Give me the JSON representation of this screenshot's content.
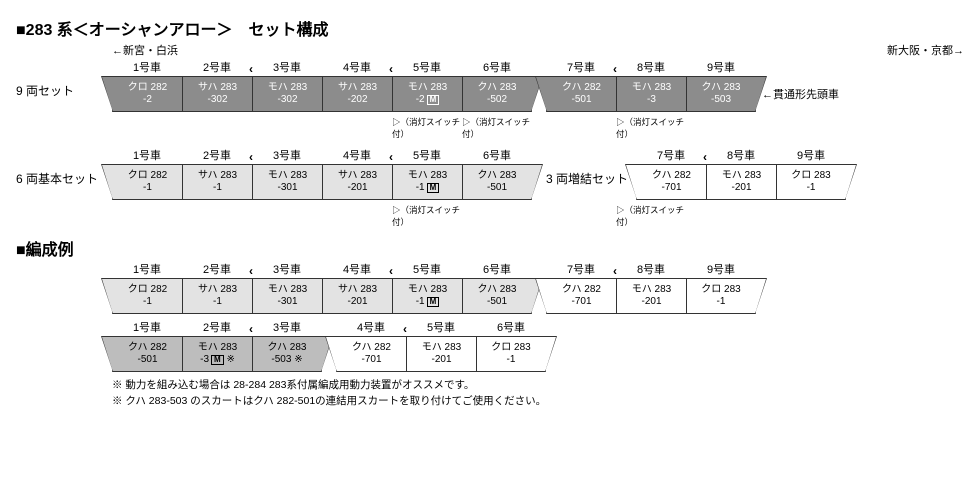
{
  "title1": "■283 系＜オーシャンアロー＞　セット構成",
  "title2": "■編成例",
  "dir_left": "←新宮・白浜",
  "dir_right": "新大阪・京都→",
  "arrow_note": "←貫通形先頭車",
  "labels": {
    "set9": "9 両セット",
    "set6": "6 両基本セット",
    "set3": "3 両増結セット"
  },
  "car_nums": [
    "1号車",
    "2号車",
    "3号車",
    "4号車",
    "5号車",
    "6号車",
    "7号車",
    "8号車",
    "9号車"
  ],
  "chevron_at": [
    3,
    5,
    8
  ],
  "switch_note": "（消灯スイッチ付）",
  "rows": {
    "set9": [
      {
        "t": "dark",
        "l1": "クロ 282",
        "l2": "-2",
        "noseL": true
      },
      {
        "t": "dark",
        "l1": "サハ 283",
        "l2": "-302"
      },
      {
        "t": "dark",
        "l1": "モハ 283",
        "l2": "-302"
      },
      {
        "t": "dark",
        "l1": "サハ 283",
        "l2": "-202"
      },
      {
        "t": "dark",
        "l1": "モハ 283",
        "l2": "-2",
        "m": true
      },
      {
        "t": "dark",
        "l1": "クハ 283",
        "l2": "-502",
        "noseR": true
      },
      {
        "t": "dark",
        "l1": "クハ 282",
        "l2": "-501",
        "noseL": true,
        "gapBefore": true
      },
      {
        "t": "dark",
        "l1": "モハ 283",
        "l2": "-3"
      },
      {
        "t": "dark",
        "l1": "クハ 283",
        "l2": "-503",
        "noseR": true,
        "last": true
      }
    ],
    "set6": [
      {
        "t": "light",
        "l1": "クロ 282",
        "l2": "-1",
        "noseL": true
      },
      {
        "t": "light",
        "l1": "サハ 283",
        "l2": "-1"
      },
      {
        "t": "light",
        "l1": "モハ 283",
        "l2": "-301"
      },
      {
        "t": "light",
        "l1": "サハ 283",
        "l2": "-201"
      },
      {
        "t": "light",
        "l1": "モハ 283",
        "l2": "-1",
        "m": true
      },
      {
        "t": "light",
        "l1": "クハ 283",
        "l2": "-501",
        "noseR": true,
        "last": true
      }
    ],
    "set3": [
      {
        "t": "white",
        "l1": "クハ 282",
        "l2": "-701",
        "noseL": true
      },
      {
        "t": "white",
        "l1": "モハ 283",
        "l2": "-201"
      },
      {
        "t": "white",
        "l1": "クロ 283",
        "l2": "-1",
        "noseR": true,
        "last": true
      }
    ],
    "ex1": [
      {
        "t": "light",
        "l1": "クロ 282",
        "l2": "-1",
        "noseL": true
      },
      {
        "t": "light",
        "l1": "サハ 283",
        "l2": "-1"
      },
      {
        "t": "light",
        "l1": "モハ 283",
        "l2": "-301"
      },
      {
        "t": "light",
        "l1": "サハ 283",
        "l2": "-201"
      },
      {
        "t": "light",
        "l1": "モハ 283",
        "l2": "-1",
        "m": true
      },
      {
        "t": "light",
        "l1": "クハ 283",
        "l2": "-501",
        "noseR": true
      },
      {
        "t": "white",
        "l1": "クハ 282",
        "l2": "-701",
        "noseL": true,
        "gapBefore": true
      },
      {
        "t": "white",
        "l1": "モハ 283",
        "l2": "-201"
      },
      {
        "t": "white",
        "l1": "クロ 283",
        "l2": "-1",
        "noseR": true,
        "last": true
      }
    ],
    "ex2": [
      {
        "t": "mid",
        "l1": "クハ 282",
        "l2": "-501",
        "noseL": true
      },
      {
        "t": "mid",
        "l1": "モハ 283",
        "l2": "-3",
        "m": true,
        "star": true
      },
      {
        "t": "mid",
        "l1": "クハ 283",
        "l2": "-503",
        "star": true,
        "noseR": true
      },
      {
        "t": "white",
        "l1": "クハ 282",
        "l2": "-701",
        "noseL": true,
        "gapBefore": true
      },
      {
        "t": "white",
        "l1": "モハ 283",
        "l2": "-201"
      },
      {
        "t": "white",
        "l1": "クロ 283",
        "l2": "-1",
        "noseR": true,
        "last": true
      }
    ]
  },
  "switch_positions": {
    "set9": [
      5,
      6,
      8
    ],
    "set6": [
      5
    ],
    "set3": [
      8
    ]
  },
  "foot1": "※ 動力を組み込む場合は 28-284 283系付属編成用動力装置がオススメです。",
  "foot2": "※ クハ 283-503 のスカートはクハ 282-501の連結用スカートを取り付けてご使用ください。"
}
